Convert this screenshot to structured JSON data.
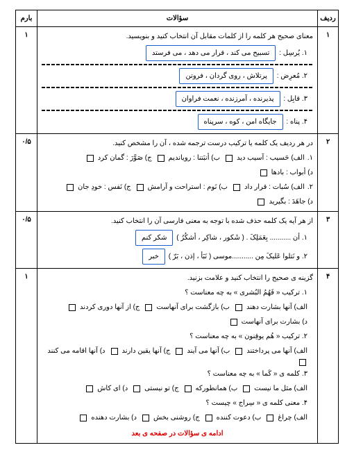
{
  "colors": {
    "highlight_border": "#1a5fd0",
    "footer": "#d00000"
  },
  "header": {
    "radif": "ردیف",
    "questions": "سؤالات",
    "barem": "بارم"
  },
  "rows": [
    {
      "num": "۱",
      "barem": "۱",
      "prompt": "معنای صحیح هر کلمه را از کلمات مقابل آن انتخاب کنید و بنویسید.",
      "items": [
        {
          "n": "۱.",
          "word": "یُرسِل :",
          "hl": "تسبیح می کند ، قرار می دهد ، می فرستد"
        },
        {
          "n": "۲.",
          "word": "مُعرِض :",
          "hl": "پرتلاش ، روی گردان ، فروتن"
        },
        {
          "n": "۳.",
          "word": "قابِل :",
          "hl": "پذیرنده ، آمرزنده ، نعمت فراوان"
        },
        {
          "n": "۴.",
          "word": "پناه :",
          "hl": "جایگاه امن ، کوه ، سرپناه"
        }
      ]
    },
    {
      "num": "۲",
      "barem": "۰/۵",
      "prompt": "در هر ردیف یک کلمه یا ترکیب درست ترجمه شده ، آن را مشخص کنید.",
      "lines": [
        [
          {
            "t": "۱."
          },
          {
            "l": "الف) حَسیب : آسیب دید"
          },
          {
            "l": "ب) أنبَتنا : رویاندیم"
          },
          {
            "l": "ج) صَوَّرَ : گمان کرد"
          },
          {
            "l": "د) أبواب : بادها"
          }
        ],
        [
          {
            "t": "۲."
          },
          {
            "l": "الف) سُبات : قرار داد"
          },
          {
            "l": "ب) نَوم : استراحت و آرامش"
          },
          {
            "l": "ج) نَفس : خودِ جان"
          },
          {
            "l": "د) جاهَدَ : بگیرید"
          }
        ]
      ]
    },
    {
      "num": "۳",
      "barem": "۰/۵",
      "prompt": "از هر آیه یک کلمه حذف شده با توجه به معنی فارسی آن را انتخاب کنید.",
      "fills": [
        {
          "n": "۱.",
          "text": "أن ........... بِعَمَلِکَ . ( شَکور ، شاکِر ، أشکُرُ )",
          "hl": "شکر کنم"
        },
        {
          "n": "۲.",
          "text": "و نَتلوا عَلیکَ مِن ...........موسی ( نَبَأ ، إذن ، بَرّ )",
          "hl": "خبر"
        }
      ]
    },
    {
      "num": "۴",
      "barem": "۱",
      "prompt": "گزینه ی صحیح را انتخاب کنید و علامت بزنید.",
      "qs": [
        {
          "q": "۱. ترکیب « فَهُمُ البُشری » به چه معناست ؟",
          "opts": [
            "الف) آنها بشارت دهند",
            "ب) بازگشت برای آنهاست",
            "ج) از آنها دوری کردند",
            "د) بشارت برای آنهاست"
          ]
        },
        {
          "q": "۲. ترکیب « هُم یوقِنون » به چه معناست ؟",
          "opts": [
            "الف) آنها می پرداختند",
            "ب) آنها می آیند",
            "ج) آنها یقین دارند",
            "د) آنها اقامه می کنند"
          ]
        },
        {
          "q": "۳. کلمه ی « کَما » به چه معناست ؟",
          "opts": [
            "الف) مثل ما نیست",
            "ب) همانطورکه",
            "ج) تو نیستی",
            "د) ای کاش"
          ]
        },
        {
          "q": "۴. معنی کلمه ی « سِراج » چیست ؟",
          "opts": [
            "الف) چراغ",
            "ب) دعوت کننده",
            "ج) روشنی بخش",
            "د) بشارت دهنده"
          ]
        }
      ]
    }
  ],
  "footer": "ادامه ی سؤالات در صفحه ی بعد"
}
